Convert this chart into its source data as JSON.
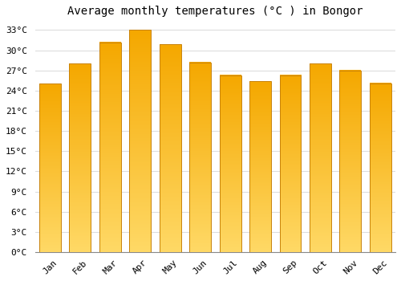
{
  "title": "Average monthly temperatures (°C ) in Bongor",
  "months": [
    "Jan",
    "Feb",
    "Mar",
    "Apr",
    "May",
    "Jun",
    "Jul",
    "Aug",
    "Sep",
    "Oct",
    "Nov",
    "Dec"
  ],
  "values": [
    25.0,
    28.0,
    31.2,
    33.0,
    30.9,
    28.2,
    26.3,
    25.4,
    26.3,
    28.0,
    27.0,
    25.1
  ],
  "bar_color_top": "#F5A800",
  "bar_color_bottom": "#FFD966",
  "bar_edge_color": "#C8820A",
  "background_color": "#FFFFFF",
  "plot_bg_color": "#FFFFFF",
  "grid_color": "#DDDDDD",
  "ylim": [
    0,
    34
  ],
  "ytick_step": 3,
  "title_fontsize": 10,
  "tick_fontsize": 8,
  "font_family": "monospace"
}
